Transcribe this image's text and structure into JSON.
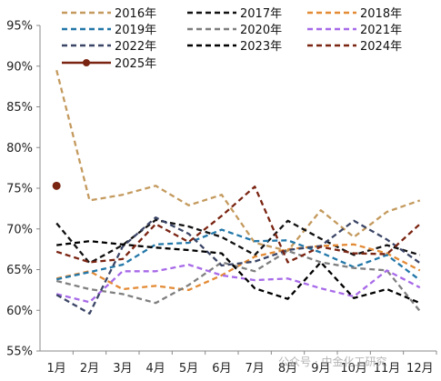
{
  "chart_data": {
    "type": "line",
    "title": "",
    "xlabel": "",
    "ylabel": "",
    "ylim": [
      55,
      95
    ],
    "yticks": [
      55,
      60,
      65,
      70,
      75,
      80,
      85,
      90,
      95
    ],
    "y_format": "percent",
    "grid": false,
    "legend_position": "top",
    "categories": [
      "1月",
      "2月",
      "3月",
      "4月",
      "5月",
      "6月",
      "7月",
      "8月",
      "9月",
      "10月",
      "11月",
      "12月"
    ],
    "series": [
      {
        "name": "2016年",
        "color": "#C49A5E",
        "dash": "dashed",
        "values": [
          89.5,
          73.5,
          74.2,
          75.3,
          72.9,
          74.2,
          68.3,
          67.3,
          72.3,
          69.0,
          72.1,
          73.5
        ]
      },
      {
        "name": "2017年",
        "color": "#111111",
        "dash": "dashed",
        "values": [
          70.7,
          65.8,
          68.0,
          71.1,
          70.3,
          69.0,
          66.8,
          71.0,
          68.8,
          66.8,
          68.0,
          66.8
        ]
      },
      {
        "name": "2018年",
        "color": "#E38A34",
        "dash": "dashed",
        "values": [
          63.9,
          64.8,
          62.6,
          63.0,
          62.5,
          64.3,
          66.6,
          67.5,
          67.9,
          68.1,
          67.0,
          64.9
        ]
      },
      {
        "name": "2019年",
        "color": "#2277A8",
        "dash": "dashed",
        "values": [
          63.8,
          64.7,
          65.6,
          68.1,
          68.3,
          69.9,
          68.5,
          68.6,
          67.1,
          65.3,
          66.8,
          63.7
        ]
      },
      {
        "name": "2020年",
        "color": "#7F7F7F",
        "dash": "dashed",
        "values": [
          63.6,
          62.6,
          62.0,
          60.9,
          63.1,
          65.9,
          64.8,
          67.3,
          65.9,
          65.2,
          64.9,
          59.9
        ]
      },
      {
        "name": "2021年",
        "color": "#A76AE8",
        "dash": "dashed",
        "values": [
          62.0,
          61.0,
          64.8,
          64.8,
          65.6,
          64.3,
          63.7,
          63.9,
          62.7,
          61.7,
          64.9,
          62.8
        ]
      },
      {
        "name": "2022年",
        "color": "#3B4566",
        "dash": "dashed",
        "values": [
          61.9,
          59.6,
          67.8,
          71.4,
          69.4,
          65.5,
          66.0,
          67.4,
          67.9,
          71.0,
          68.7,
          65.8
        ]
      },
      {
        "name": "2023年",
        "color": "#000000",
        "dash": "dashed",
        "values": [
          68.0,
          68.5,
          68.1,
          67.7,
          67.4,
          67.0,
          62.7,
          61.4,
          65.9,
          61.5,
          62.6,
          60.9
        ]
      },
      {
        "name": "2024年",
        "color": "#7A2412",
        "dash": "dashed",
        "values": [
          67.2,
          65.9,
          66.3,
          70.6,
          68.4,
          71.6,
          75.2,
          65.9,
          67.8,
          67.0,
          66.9,
          70.6
        ]
      },
      {
        "name": "2025年",
        "color": "#7A2412",
        "dash": "solid",
        "marker": "circle",
        "values": [
          75.3,
          null,
          null,
          null,
          null,
          null,
          null,
          null,
          null,
          null,
          null,
          null
        ]
      }
    ]
  },
  "watermark": "公众号 · 中金化工研究"
}
